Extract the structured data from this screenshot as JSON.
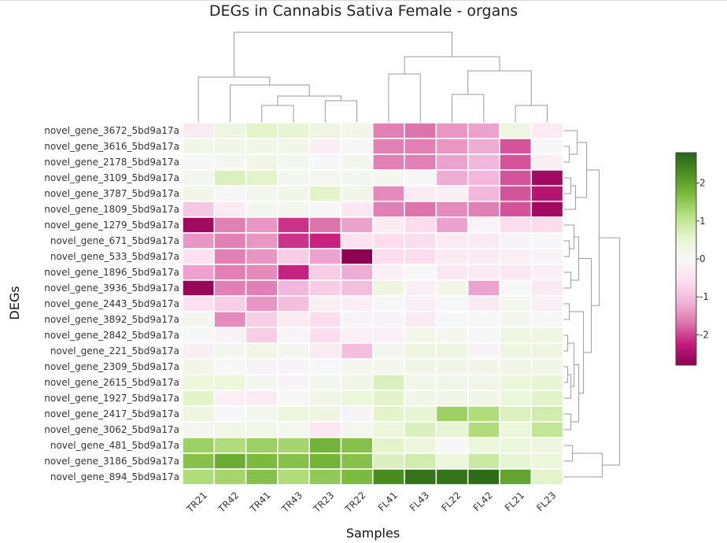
{
  "chart_data": {
    "type": "heatmap",
    "title": "DEGs in Cannabis Sativa Female - organs",
    "xlabel": "Samples",
    "ylabel": "DEGs",
    "x": [
      "TR21",
      "TR42",
      "TR41",
      "TR43",
      "TR23",
      "TR22",
      "FL41",
      "FL43",
      "FL22",
      "FL42",
      "FL21",
      "FL23"
    ],
    "y": [
      "novel_gene_3672_5bd9a17a",
      "novel_gene_3616_5bd9a17a",
      "novel_gene_2178_5bd9a17a",
      "novel_gene_3109_5bd9a17a",
      "novel_gene_3787_5bd9a17a",
      "novel_gene_1809_5bd9a17a",
      "novel_gene_1279_5bd9a17a",
      "novel_gene_671_5bd9a17a",
      "novel_gene_533_5bd9a17a",
      "novel_gene_1896_5bd9a17a",
      "novel_gene_3936_5bd9a17a",
      "novel_gene_2443_5bd9a17a",
      "novel_gene_3892_5bd9a17a",
      "novel_gene_2842_5bd9a17a",
      "novel_gene_221_5bd9a17a",
      "novel_gene_2309_5bd9a17a",
      "novel_gene_2615_5bd9a17a",
      "novel_gene_1927_5bd9a17a",
      "novel_gene_2417_5bd9a17a",
      "novel_gene_3062_5bd9a17a",
      "novel_gene_481_5bd9a17a",
      "novel_gene_3186_5bd9a17a",
      "novel_gene_894_5bd9a17a"
    ],
    "z": [
      [
        -0.3,
        0.3,
        0.6,
        0.5,
        0.3,
        0.2,
        -1.6,
        -1.7,
        -1.4,
        -1.3,
        0.3,
        -0.3
      ],
      [
        0.2,
        0.2,
        0.2,
        0.2,
        -0.2,
        0.0,
        -1.6,
        -1.6,
        -1.4,
        -1.2,
        -1.9,
        0.0
      ],
      [
        0.0,
        0.1,
        0.2,
        0.1,
        0.0,
        0.1,
        -1.6,
        -1.6,
        -1.3,
        -1.1,
        -1.9,
        -0.2
      ],
      [
        0.1,
        0.7,
        0.6,
        0.1,
        0.1,
        0.1,
        0.1,
        0.0,
        -1.2,
        -1.1,
        -1.9,
        -2.6
      ],
      [
        0.2,
        0.0,
        0.1,
        0.2,
        0.6,
        0.2,
        -1.5,
        -0.3,
        -0.2,
        -1.1,
        -1.9,
        -2.4
      ],
      [
        -0.9,
        -0.3,
        0.1,
        0.1,
        0.0,
        -0.4,
        -1.6,
        -1.7,
        -1.5,
        -1.6,
        -1.9,
        -2.6
      ],
      [
        -2.6,
        -1.6,
        -1.4,
        -2.1,
        -1.7,
        -1.3,
        -0.3,
        -0.6,
        -1.3,
        -0.1,
        -0.6,
        -0.6
      ],
      [
        -1.4,
        -1.6,
        -1.4,
        -2.1,
        -2.2,
        -0.5,
        -0.6,
        -0.6,
        -0.3,
        -0.3,
        -0.1,
        0.0
      ],
      [
        -0.5,
        -1.6,
        -1.4,
        -0.8,
        -1.3,
        -2.8,
        -0.6,
        -0.6,
        -0.3,
        -0.3,
        -0.2,
        -0.1
      ],
      [
        -1.3,
        -1.6,
        -1.5,
        -2.2,
        -0.8,
        -1.2,
        -0.2,
        0.0,
        -0.4,
        -0.3,
        -0.4,
        -0.2
      ],
      [
        -2.7,
        -1.6,
        -1.6,
        -1.1,
        -0.8,
        -1.0,
        0.3,
        -0.2,
        0.2,
        -1.3,
        0.0,
        -0.3
      ],
      [
        -0.5,
        -0.8,
        -1.4,
        -1.0,
        -0.2,
        -0.2,
        0.0,
        -0.2,
        0.0,
        -0.3,
        0.1,
        -0.2
      ],
      [
        0.1,
        -1.5,
        -0.8,
        -0.3,
        -0.6,
        -0.1,
        -0.1,
        -0.3,
        0.0,
        0.0,
        0.1,
        0.0
      ],
      [
        0.0,
        -0.1,
        -0.8,
        -0.1,
        -0.6,
        -0.2,
        -0.2,
        0.2,
        0.1,
        0.0,
        0.3,
        0.3
      ],
      [
        -0.2,
        0.1,
        0.2,
        0.1,
        -0.3,
        -1.0,
        0.1,
        0.3,
        0.3,
        -0.1,
        0.3,
        0.3
      ],
      [
        0.2,
        0.0,
        -0.1,
        -0.1,
        0.0,
        0.1,
        0.1,
        0.2,
        0.2,
        0.2,
        0.2,
        0.2
      ],
      [
        0.4,
        0.4,
        0.1,
        -0.1,
        0.1,
        0.2,
        0.7,
        0.2,
        0.2,
        0.2,
        0.4,
        0.5
      ],
      [
        0.6,
        -0.2,
        -0.3,
        0.0,
        0.2,
        0.4,
        0.6,
        0.2,
        0.2,
        0.2,
        0.4,
        0.6
      ],
      [
        0.3,
        0.0,
        0.1,
        0.4,
        0.3,
        -0.1,
        0.6,
        0.5,
        1.4,
        1.2,
        0.7,
        0.8
      ],
      [
        0.1,
        0.2,
        0.2,
        0.1,
        -0.4,
        0.1,
        0.4,
        0.7,
        0.5,
        1.2,
        0.4,
        1.0
      ],
      [
        1.4,
        1.2,
        1.4,
        1.3,
        1.8,
        1.6,
        0.6,
        0.4,
        0.0,
        0.4,
        0.4,
        0.3
      ],
      [
        1.6,
        1.9,
        1.7,
        1.6,
        1.8,
        1.6,
        0.7,
        0.8,
        0.4,
        0.9,
        0.5,
        0.4
      ],
      [
        1.2,
        1.3,
        1.6,
        1.2,
        1.5,
        1.7,
        2.3,
        2.6,
        2.6,
        2.7,
        2.0,
        0.6
      ]
    ],
    "colorbar": {
      "min": -2.8,
      "max": 2.8,
      "ticks": [
        "2",
        "1",
        "0",
        "-1",
        "-2"
      ],
      "tick_values": [
        2,
        1,
        0,
        -1,
        -2
      ]
    },
    "colorscale": [
      "#8e0152",
      "#c51b7d",
      "#de77ae",
      "#f1b6da",
      "#fde0ef",
      "#f7f7f7",
      "#e6f5d0",
      "#b8e186",
      "#7fbc41",
      "#4d9221",
      "#276419"
    ],
    "dendrogram_columns": "top",
    "dendrogram_rows": "right",
    "grid": false
  }
}
